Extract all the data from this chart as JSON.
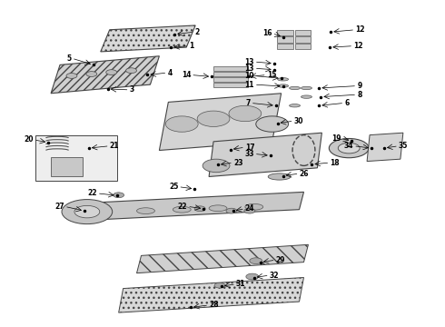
{
  "bg_color": "#ffffff",
  "line_color": "#888888",
  "text_color": "#000000",
  "fig_width": 4.9,
  "fig_height": 3.6,
  "dpi": 100
}
